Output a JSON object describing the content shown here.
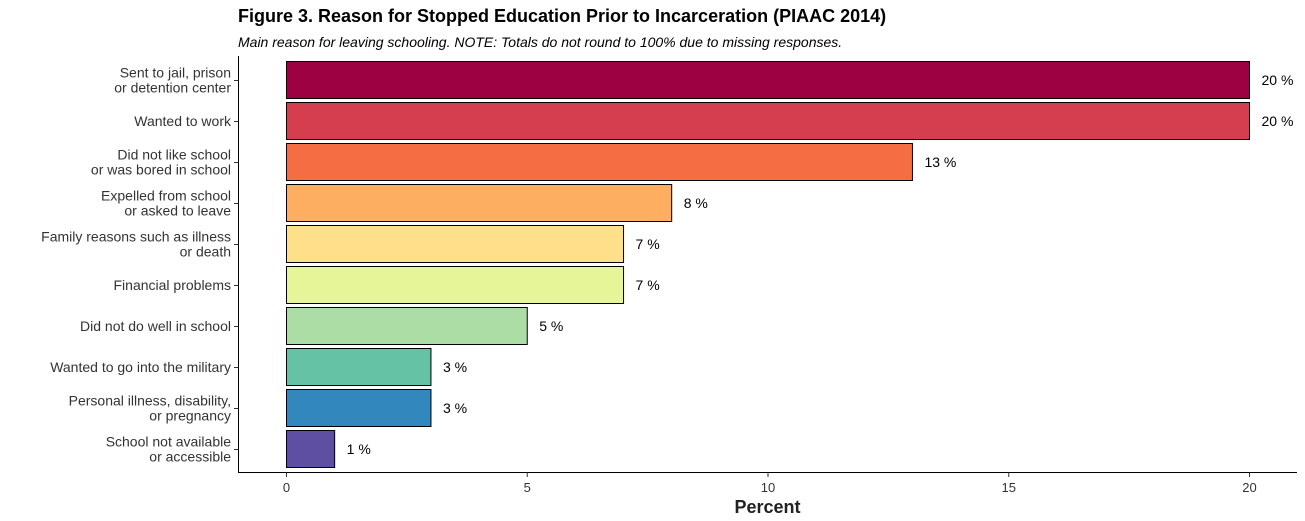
{
  "title": "Figure 3. Reason for Stopped Education Prior to Incarceration (PIAAC 2014)",
  "subtitle": "Main reason for leaving schooling. NOTE: Totals do not round to 100% due to missing responses.",
  "chart_data": {
    "type": "bar",
    "orientation": "horizontal",
    "title": "Figure 3. Reason for Stopped Education Prior to Incarceration (PIAAC 2014)",
    "subtitle": "Main reason for leaving schooling. NOTE: Totals do not round to 100% due to missing responses.",
    "xlabel": "Percent",
    "ylabel": "",
    "xlim": [
      0,
      21
    ],
    "xticks": [
      0,
      5,
      10,
      15,
      20
    ],
    "grid": false,
    "legend": "none",
    "label_suffix": " %",
    "categories": [
      [
        "Sent to jail, prison",
        "or detention center"
      ],
      [
        "Wanted to work"
      ],
      [
        "Did not like school",
        "or was bored in school"
      ],
      [
        "Expelled from school",
        "or asked to leave"
      ],
      [
        "Family reasons such as illness",
        "or death"
      ],
      [
        "Financial problems"
      ],
      [
        "Did not do well in school"
      ],
      [
        "Wanted to go into the military"
      ],
      [
        "Personal illness, disability,",
        "or pregnancy"
      ],
      [
        "School not available",
        "or accessible"
      ]
    ],
    "values": [
      20,
      20,
      13,
      8,
      7,
      7,
      5,
      3,
      3,
      1
    ],
    "colors": [
      "#9E0142",
      "#D53E4F",
      "#F46D43",
      "#FDAE61",
      "#FEE08B",
      "#E6F598",
      "#ABDDA4",
      "#66C2A5",
      "#3288BD",
      "#5E4FA2"
    ]
  }
}
